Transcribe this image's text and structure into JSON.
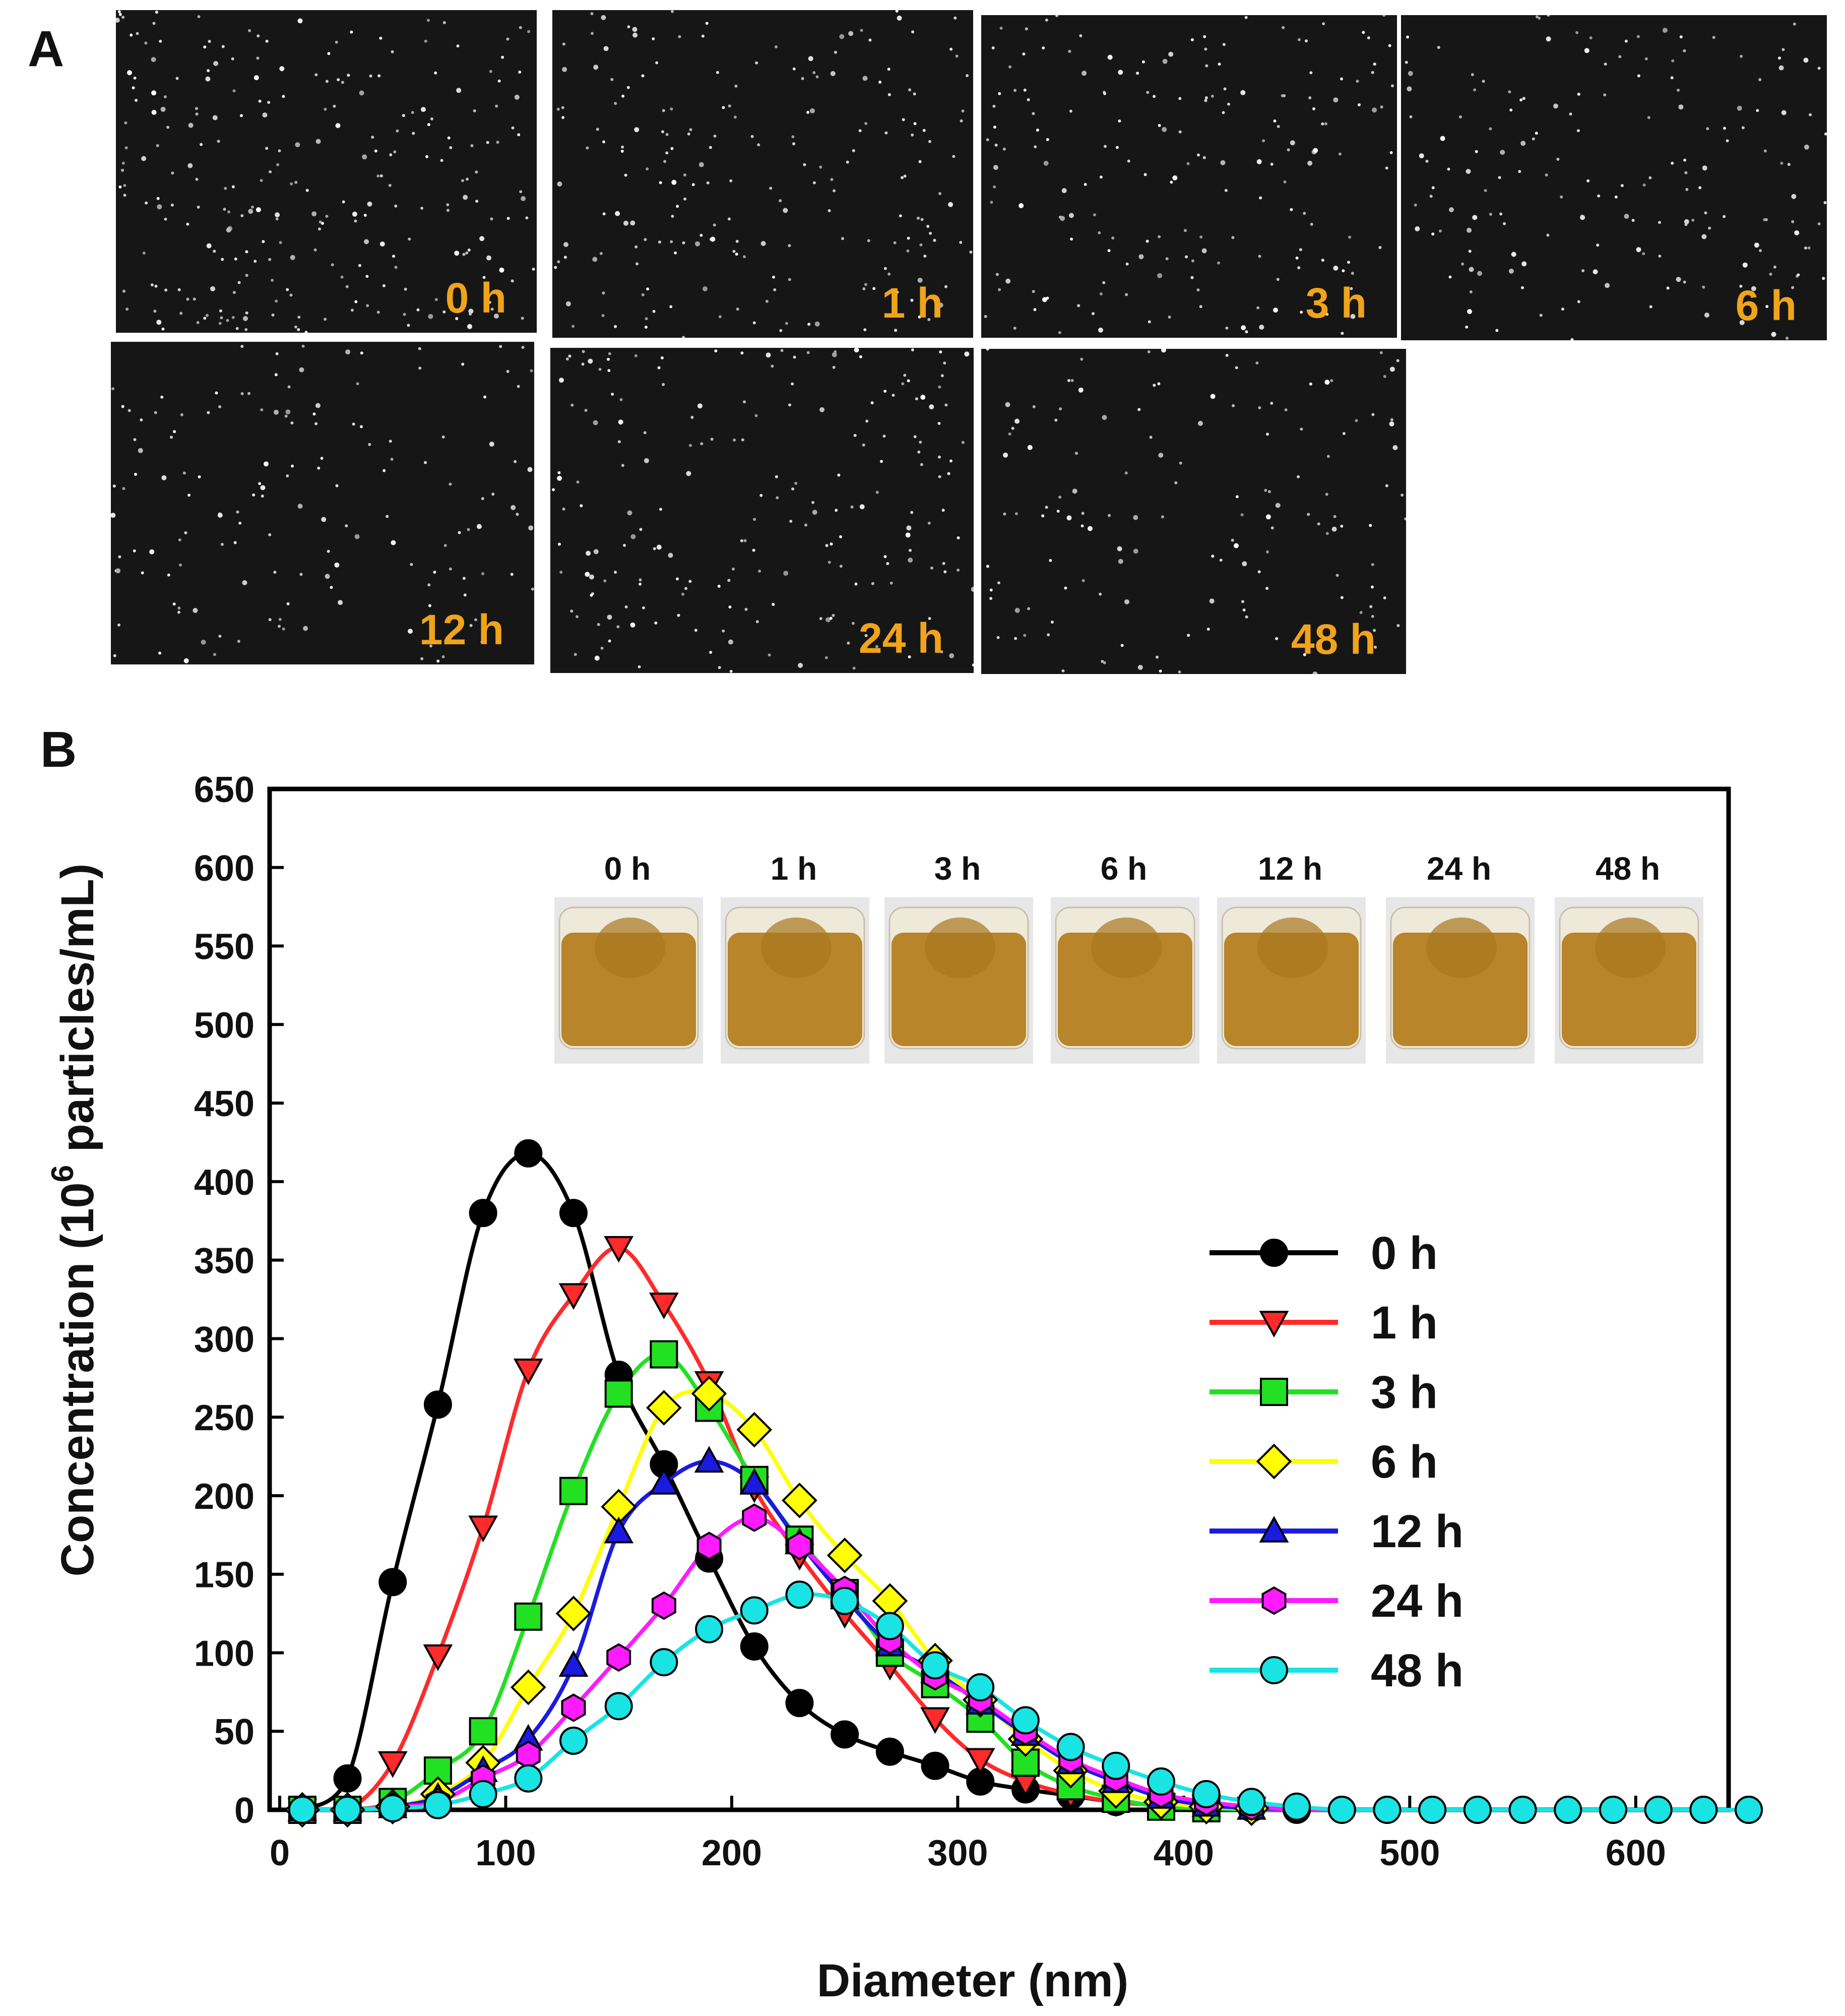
{
  "panel_a": {
    "letter": "A",
    "images": [
      {
        "label": "0 h",
        "seed": 11,
        "count": 260
      },
      {
        "label": "1 h",
        "seed": 23,
        "count": 200
      },
      {
        "label": "3 h",
        "seed": 37,
        "count": 180
      },
      {
        "label": "6 h",
        "seed": 41,
        "count": 170
      },
      {
        "label": "12 h",
        "seed": 53,
        "count": 150
      },
      {
        "label": "24 h",
        "seed": 67,
        "count": 200
      },
      {
        "label": "48 h",
        "seed": 79,
        "count": 140
      }
    ]
  },
  "panel_b": {
    "letter": "B",
    "vial_photos": [
      "0 h",
      "1 h",
      "3 h",
      "6 h",
      "12 h",
      "24 h",
      "48 h"
    ]
  },
  "chart_data": {
    "type": "line",
    "title": "",
    "xlabel": "Diameter (nm)",
    "ylabel_main": "Concentration (10",
    "ylabel_sup": "6",
    "ylabel_tail": " particles/mL)",
    "xlim": [
      0,
      650
    ],
    "ylim": [
      0,
      650
    ],
    "xticks": [
      0,
      100,
      200,
      300,
      400,
      500,
      600
    ],
    "yticks": [
      0,
      50,
      100,
      150,
      200,
      250,
      300,
      350,
      400,
      450,
      500,
      550,
      600,
      650
    ],
    "grid": false,
    "legend_position": "right",
    "x": [
      10,
      30,
      50,
      70,
      90,
      110,
      130,
      150,
      170,
      190,
      210,
      230,
      250,
      270,
      290,
      310,
      330,
      350,
      370,
      390,
      410,
      430,
      450,
      470,
      490,
      510,
      530,
      550,
      570,
      590,
      610,
      630,
      650
    ],
    "series": [
      {
        "name": "0 h",
        "color": "#000000",
        "marker": "circle",
        "values": [
          0,
          20,
          145,
          258,
          380,
          418,
          380,
          277,
          220,
          160,
          104,
          68,
          48,
          37,
          28,
          18,
          13,
          9,
          5,
          3,
          2,
          1,
          0,
          0,
          0,
          0,
          0,
          0,
          0,
          0,
          0,
          0,
          0
        ]
      },
      {
        "name": "1 h",
        "color": "#ff2a2a",
        "marker": "triangle-down",
        "values": [
          0,
          0,
          30,
          98,
          180,
          280,
          328,
          358,
          322,
          272,
          205,
          162,
          125,
          92,
          58,
          32,
          18,
          10,
          5,
          3,
          2,
          1,
          0,
          0,
          0,
          0,
          0,
          0,
          0,
          0,
          0,
          0,
          0
        ]
      },
      {
        "name": "3 h",
        "color": "#22e022",
        "marker": "square",
        "values": [
          0,
          0,
          5,
          25,
          50,
          123,
          203,
          265,
          290,
          256,
          210,
          172,
          138,
          100,
          80,
          58,
          30,
          15,
          7,
          2,
          1,
          0,
          0,
          0,
          0,
          0,
          0,
          0,
          0,
          0,
          0,
          0,
          0
        ]
      },
      {
        "name": "6 h",
        "color": "#ffff00",
        "marker": "diamond",
        "values": [
          0,
          0,
          2,
          10,
          30,
          78,
          125,
          193,
          256,
          265,
          242,
          197,
          162,
          133,
          95,
          70,
          45,
          25,
          12,
          5,
          2,
          1,
          0,
          0,
          0,
          0,
          0,
          0,
          0,
          0,
          0,
          0,
          0
        ]
      },
      {
        "name": "12 h",
        "color": "#1a1ae0",
        "marker": "triangle-up",
        "values": [
          0,
          0,
          2,
          8,
          25,
          45,
          92,
          177,
          208,
          222,
          208,
          170,
          135,
          105,
          88,
          68,
          48,
          30,
          18,
          8,
          3,
          1,
          0,
          0,
          0,
          0,
          0,
          0,
          0,
          0,
          0,
          0,
          0
        ]
      },
      {
        "name": "24 h",
        "color": "#ff1aff",
        "marker": "hexagon",
        "values": [
          0,
          0,
          2,
          5,
          20,
          35,
          65,
          97,
          130,
          168,
          186,
          168,
          140,
          108,
          85,
          70,
          50,
          32,
          20,
          10,
          5,
          2,
          0,
          0,
          0,
          0,
          0,
          0,
          0,
          0,
          0,
          0,
          0
        ]
      },
      {
        "name": "48 h",
        "color": "#19e3e3",
        "marker": "circle",
        "values": [
          0,
          0,
          1,
          3,
          10,
          20,
          44,
          66,
          94,
          115,
          127,
          137,
          133,
          117,
          92,
          78,
          57,
          40,
          28,
          18,
          10,
          5,
          2,
          0,
          0,
          0,
          0,
          0,
          0,
          0,
          0,
          0,
          0
        ]
      }
    ]
  },
  "colors": {
    "label_orange": "#f0a41a",
    "liquid": "#b8852a",
    "micro_bg": "#161616"
  }
}
